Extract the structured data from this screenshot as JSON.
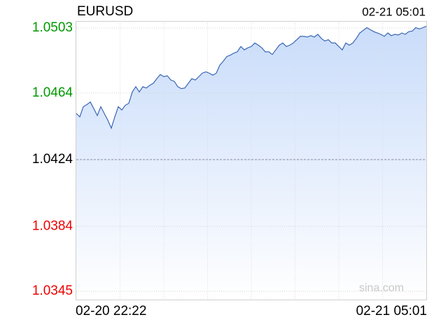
{
  "chart_data": {
    "type": "line",
    "title": "EURUSD",
    "timestamp": "02-21 05:01",
    "watermark": "sina.com",
    "categories": [
      "02-20 22:22",
      null,
      null,
      null,
      null,
      null,
      null,
      null,
      null,
      null,
      null,
      null,
      null,
      null,
      null,
      null,
      null,
      null,
      null,
      null,
      null,
      null,
      null,
      null,
      null,
      null,
      null,
      null,
      null,
      null,
      null,
      null,
      null,
      null,
      null,
      null,
      null,
      null,
      null,
      null,
      null,
      null,
      null,
      null,
      null,
      null,
      null,
      null,
      null,
      null,
      null,
      null,
      null,
      null,
      null,
      null,
      null,
      null,
      null,
      null,
      null,
      null,
      null,
      null,
      null,
      null,
      null,
      null,
      null,
      null,
      null,
      null,
      null,
      null,
      null,
      null,
      null,
      null,
      null,
      null,
      null,
      null,
      null,
      null,
      null,
      null,
      null,
      null,
      null,
      null,
      null,
      null,
      null,
      null,
      null,
      null,
      null,
      null,
      null,
      null,
      "02-21 05:01"
    ],
    "series": [
      {
        "name": "EURUSD",
        "color": "#3a66b4",
        "values": [
          1.04517,
          1.04497,
          1.04558,
          1.0457,
          1.04586,
          1.04546,
          1.04505,
          1.04558,
          1.04517,
          1.04477,
          1.04429,
          1.04497,
          1.04558,
          1.04538,
          1.04566,
          1.04578,
          1.04646,
          1.04678,
          1.04646,
          1.04678,
          1.0467,
          1.04686,
          1.04698,
          1.04726,
          1.04751,
          1.04738,
          1.04743,
          1.04718,
          1.0471,
          1.04678,
          1.04666,
          1.0467,
          1.04698,
          1.04726,
          1.04718,
          1.04738,
          1.04759,
          1.04767,
          1.04759,
          1.04747,
          1.04759,
          1.04807,
          1.04831,
          1.04859,
          1.04867,
          1.04879,
          1.04887,
          1.04919,
          1.04899,
          1.04911,
          1.04919,
          1.0494,
          1.04927,
          1.04911,
          1.04887,
          1.04887,
          1.04871,
          1.04899,
          1.04927,
          1.0494,
          1.04919,
          1.04927,
          1.0494,
          1.0496,
          1.0498,
          1.0498,
          1.04976,
          1.04984,
          1.04976,
          1.04992,
          1.04968,
          1.04952,
          1.0496,
          1.0494,
          1.0494,
          1.04919,
          1.04899,
          1.0494,
          1.04927,
          1.0494,
          1.04968,
          1.05,
          1.05016,
          1.05032,
          1.0502,
          1.05008,
          1.05,
          1.04992,
          1.0498,
          1.05,
          1.04984,
          1.04992,
          1.04988,
          1.05,
          1.04992,
          1.05008,
          1.05012,
          1.05032,
          1.05024,
          1.05032,
          1.0504
        ]
      }
    ],
    "ylim": [
      1.034,
      1.05072
    ],
    "yticks": [
      1.0503,
      1.0464,
      1.0424,
      1.0384,
      1.0345
    ],
    "reference_line": 1.0424,
    "up_color": "#009900",
    "down_color": "#ee0000",
    "flat_color": "#000000",
    "grid": true
  }
}
